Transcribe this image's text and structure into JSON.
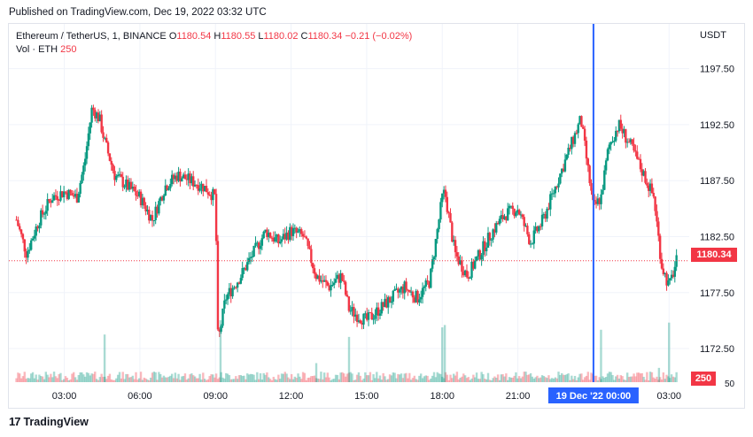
{
  "credit": "Published on TradingView.com, Dec 19, 2022 03:32 UTC",
  "brand": {
    "logo_text": "17",
    "name": "TradingView"
  },
  "legend": {
    "symbol": "Ethereum / TetherUS, 1, BINANCE",
    "o_label": "O",
    "o_value": "1180.54",
    "h_label": "H",
    "h_value": "1180.55",
    "l_label": "L",
    "l_value": "1180.02",
    "c_label": "C",
    "c_value": "1180.34",
    "change": "−0.21 (−0.02%)",
    "vol_label": "Vol · ETH",
    "vol_value": "250"
  },
  "currency": "USDT",
  "last_price_tag": "1180.34",
  "volume_tag": "250",
  "cursor_label": "19 Dec '22   00:00",
  "colors": {
    "up": "#089981",
    "down": "#f23645",
    "cursor": "#2962ff",
    "grid": "#f0f3fa",
    "axis_text": "#131722"
  },
  "chart_data": {
    "type": "candlestick",
    "title": "Ethereum / TetherUS, 1, BINANCE",
    "y_ticks": [
      1172.5,
      1177.5,
      1182.5,
      1187.5,
      1192.5,
      1197.5
    ],
    "y_tick_labels": [
      "1172.50",
      "1177.50",
      "1182.50",
      "1187.50",
      "1192.50",
      "1197.50"
    ],
    "volume_axis_label": "50",
    "x_tick_labels": [
      "03:00",
      "06:00",
      "09:00",
      "12:00",
      "15:00",
      "18:00",
      "21:00",
      "03:00"
    ],
    "ylim": [
      1169.5,
      1201.5
    ],
    "last_price": 1180.34,
    "price_path_hours": [
      1.1,
      1.5,
      2.0,
      2.5,
      3.0,
      3.5,
      3.8,
      4.1,
      4.4,
      4.6,
      5.0,
      5.5,
      6.0,
      6.5,
      7.0,
      7.5,
      8.0,
      8.5,
      9.0,
      9.1,
      9.4,
      9.7,
      10.0,
      10.5,
      11.0,
      11.5,
      12.0,
      12.5,
      13.0,
      13.5,
      14.0,
      14.3,
      14.6,
      15.0,
      15.5,
      16.0,
      16.5,
      17.0,
      17.5,
      18.0,
      18.1,
      18.5,
      19.0,
      19.5,
      20.0,
      20.5,
      21.0,
      21.5,
      22.0,
      22.5,
      23.0,
      23.5,
      24.0,
      24.3,
      24.6,
      25.0,
      25.5,
      26.0,
      26.4,
      26.7,
      27.0,
      27.3
    ],
    "price_path_values": [
      1184,
      1181,
      1184,
      1186,
      1186.5,
      1186,
      1189,
      1194,
      1193,
      1191,
      1188,
      1187,
      1186,
      1184,
      1187,
      1188,
      1187.5,
      1187,
      1186,
      1173,
      1177,
      1178,
      1179,
      1181,
      1183,
      1182,
      1183,
      1182.5,
      1179,
      1178,
      1179,
      1176,
      1175.5,
      1175,
      1176,
      1177,
      1178,
      1177,
      1178.5,
      1186,
      1186.5,
      1181,
      1179,
      1181,
      1183,
      1184.5,
      1185,
      1182,
      1184,
      1187,
      1190,
      1193,
      1185,
      1186,
      1190.5,
      1192.5,
      1190.5,
      1188,
      1186,
      1180,
      1178,
      1180.34
    ],
    "volume_hours": [
      4.6,
      9.2,
      13.0,
      14.3,
      18.0,
      18.1,
      24.3,
      26.6,
      27.0
    ],
    "volume_values": [
      200,
      260,
      80,
      190,
      230,
      240,
      220,
      60,
      250
    ]
  }
}
